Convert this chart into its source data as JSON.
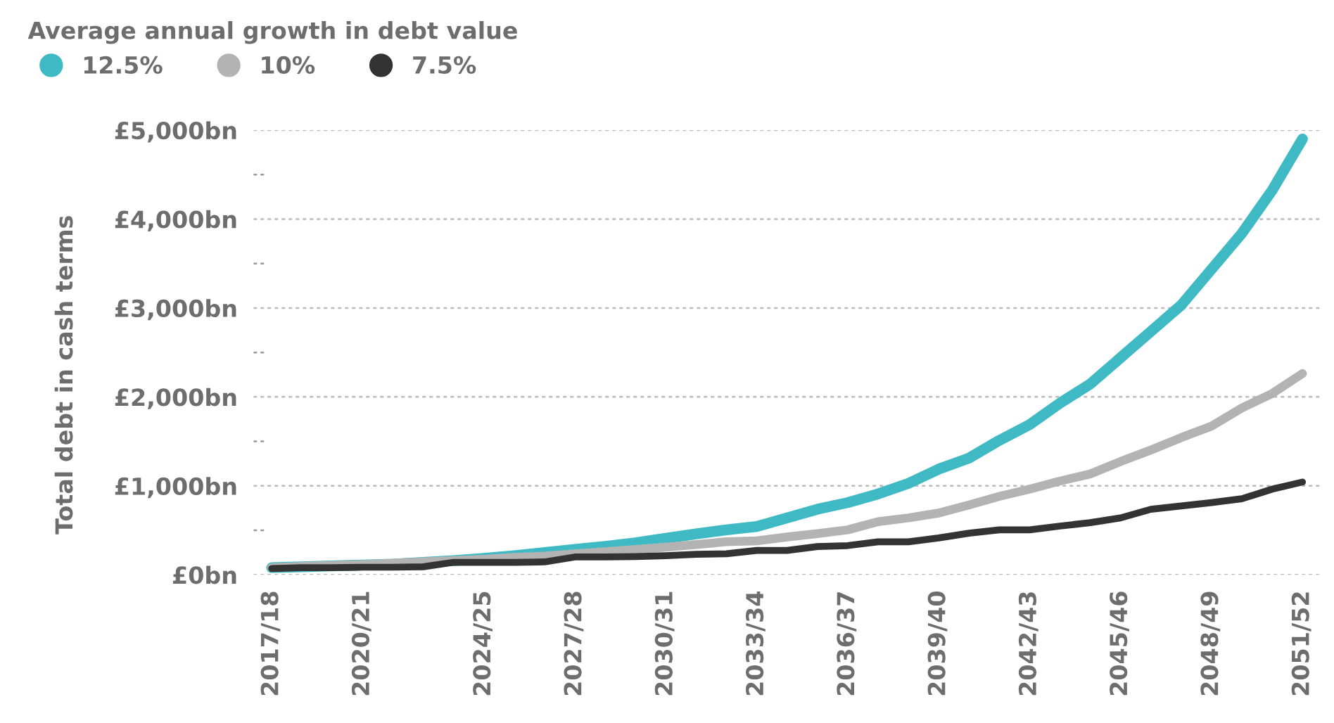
{
  "chart_data": {
    "type": "line",
    "legend_title": "Average annual growth in debt value",
    "ylabel": "Total debt in cash terms",
    "categories": [
      "2017/18",
      null,
      null,
      "2020/21",
      null,
      null,
      null,
      "2024/25",
      null,
      null,
      "2027/28",
      null,
      null,
      "2030/31",
      null,
      null,
      "2033/34",
      null,
      null,
      "2036/37",
      null,
      null,
      "2039/40",
      null,
      null,
      "2042/43",
      null,
      null,
      "2045/46",
      null,
      null,
      "2048/49",
      null,
      null,
      "2051/52"
    ],
    "series": [
      {
        "name": "12.5%",
        "color": "#3fbac5",
        "values": [
          80,
          90,
          100,
          110,
          120,
          140,
          160,
          185,
          215,
          250,
          285,
          320,
          360,
          410,
          460,
          505,
          543,
          640,
          737,
          812,
          909,
          1027,
          1188,
          1312,
          1511,
          1688,
          1930,
          2145,
          2441,
          2737,
          3032,
          3435,
          3839,
          4323,
          4900
        ]
      },
      {
        "name": "10%",
        "color": "#b3b3b3",
        "values": [
          80,
          95,
          105,
          115,
          130,
          145,
          160,
          175,
          195,
          210,
          235,
          260,
          285,
          310,
          340,
          371,
          382,
          425,
          463,
          505,
          597,
          640,
          694,
          785,
          882,
          963,
          1054,
          1134,
          1274,
          1403,
          1543,
          1672,
          1876,
          2038,
          2263
        ]
      },
      {
        "name": "7.5%",
        "color": "#333333",
        "values": [
          70,
          80,
          80,
          85,
          85,
          90,
          140,
          140,
          140,
          145,
          200,
          200,
          205,
          215,
          230,
          237,
          274,
          274,
          317,
          328,
          371,
          371,
          414,
          468,
          505,
          505,
          548,
          586,
          640,
          737,
          774,
          812,
          855,
          963,
          1043
        ]
      }
    ],
    "ylim": [
      0,
      5000
    ],
    "yticks": [
      {
        "value": 0,
        "label": "£0bn"
      },
      {
        "value": 500,
        "label": null
      },
      {
        "value": 1000,
        "label": "£1,000bn"
      },
      {
        "value": 1500,
        "label": null
      },
      {
        "value": 2000,
        "label": "£2,000bn"
      },
      {
        "value": 2500,
        "label": null
      },
      {
        "value": 3000,
        "label": "£3,000bn"
      },
      {
        "value": 3500,
        "label": null
      },
      {
        "value": 4000,
        "label": "£4,000bn"
      },
      {
        "value": 4500,
        "label": null
      },
      {
        "value": 5000,
        "label": "£5,000bn"
      }
    ],
    "grid": "y",
    "legend": "top left",
    "marker": "none",
    "line_style": "solid"
  }
}
